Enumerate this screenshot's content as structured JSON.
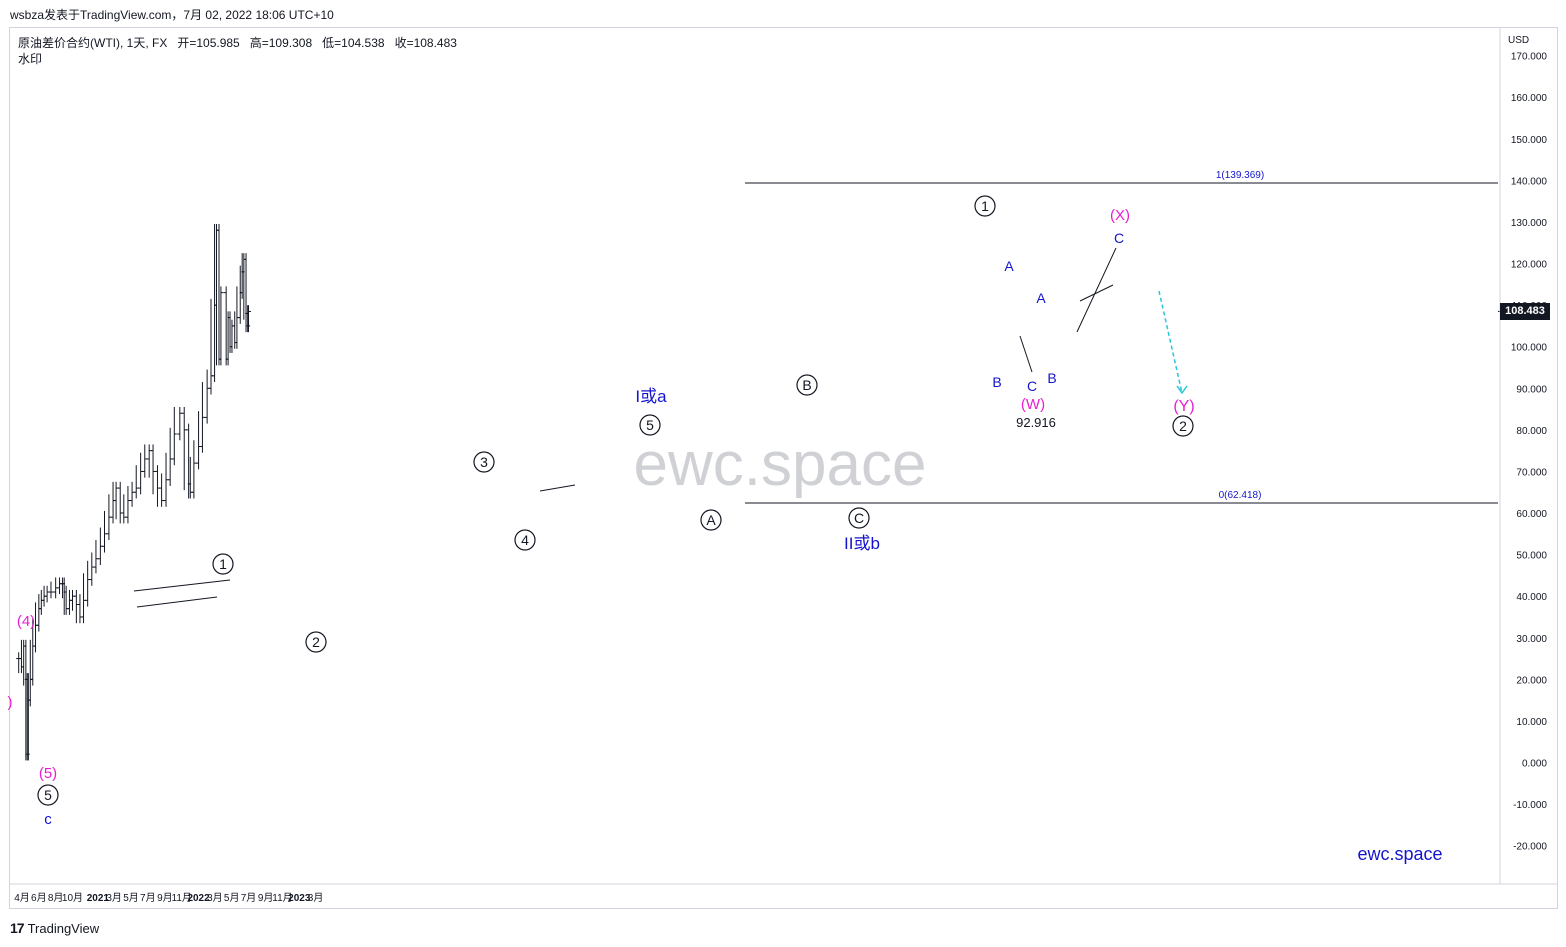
{
  "header": {
    "publish_line": "wsbza发表于TradingView.com，7月 02, 2022 18:06 UTC+10"
  },
  "legend": {
    "symbol": "原油差价合约(WTI), 1天, FX",
    "open": "开=105.985",
    "high": "高=109.308",
    "low": "低=104.538",
    "close": "收=108.483",
    "watermark_label": "水印"
  },
  "watermark": "ewc.space",
  "brand_label": "ewc.space",
  "last_price": "108.483",
  "footer": {
    "logo": "17",
    "text": "TradingView"
  },
  "colors": {
    "candles": "#131722",
    "blue_labels": "#1414cc",
    "magenta_labels": "#e91ed1",
    "projection_arrow": "#26c6da",
    "fib_line": "#131722",
    "fib_text": "#1414cc"
  },
  "chart_data": {
    "type": "line",
    "title": "原油差价合约(WTI), 1天, FX",
    "currency_label": "USD",
    "y_ticks": [
      "170.000",
      "160.000",
      "150.000",
      "140.000",
      "130.000",
      "120.000",
      "110.000",
      "100.000",
      "90.000",
      "80.000",
      "70.000",
      "60.000",
      "50.000",
      "40.000",
      "30.000",
      "20.000",
      "10.000",
      "0.000",
      "-10.000",
      "-20.000"
    ],
    "ylim": [
      -26,
      177
    ],
    "x_ticks": [
      "4月",
      "6月",
      "8月",
      "10月",
      "2021",
      "3月",
      "5月",
      "7月",
      "9月",
      "11月",
      "2022",
      "3月",
      "5月",
      "7月",
      "9月",
      "11月",
      "2023",
      "3月"
    ],
    "x_tick_dates": [
      "2020-04-01",
      "2020-06-01",
      "2020-08-01",
      "2020-10-01",
      "2021-01-01",
      "2021-03-01",
      "2021-05-01",
      "2021-07-01",
      "2021-09-01",
      "2021-11-01",
      "2022-01-01",
      "2022-03-01",
      "2022-05-01",
      "2022-07-01",
      "2022-09-01",
      "2022-11-01",
      "2023-01-01",
      "2023-03-01"
    ],
    "series": [
      {
        "name": "",
        "x": [
          "2020-03-20",
          "2020-03-30",
          "2020-04-07",
          "2020-04-15",
          "2020-04-20",
          "2020-04-24",
          "2020-05-01",
          "2020-05-10",
          "2020-05-20",
          "2020-06-01",
          "2020-06-10",
          "2020-06-20",
          "2020-07-01",
          "2020-07-15",
          "2020-08-01",
          "2020-08-15",
          "2020-08-26",
          "2020-09-01",
          "2020-09-08",
          "2020-09-20",
          "2020-10-01",
          "2020-10-15",
          "2020-10-28",
          "2020-11-10",
          "2020-11-25",
          "2020-12-10",
          "2020-12-25",
          "2021-01-10",
          "2021-01-25",
          "2021-02-10",
          "2021-02-25",
          "2021-03-08",
          "2021-03-23",
          "2021-04-05",
          "2021-04-20",
          "2021-05-05",
          "2021-05-20",
          "2021-06-05",
          "2021-06-20",
          "2021-07-06",
          "2021-07-20",
          "2021-08-05",
          "2021-08-20",
          "2021-09-05",
          "2021-09-20",
          "2021-10-05",
          "2021-10-25",
          "2021-11-10",
          "2021-11-26",
          "2021-12-02",
          "2021-12-15",
          "2022-01-01",
          "2022-01-15",
          "2022-02-01",
          "2022-02-15",
          "2022-02-28",
          "2022-03-07",
          "2022-03-16",
          "2022-03-23",
          "2022-04-11",
          "2022-04-18",
          "2022-04-25",
          "2022-05-02",
          "2022-05-12",
          "2022-05-20",
          "2022-06-01",
          "2022-06-08",
          "2022-06-14",
          "2022-06-22",
          "2022-06-28",
          "2022-07-01"
        ],
        "values": [
          25,
          23,
          28,
          20,
          2,
          15,
          20,
          28,
          33,
          37,
          39,
          40,
          41,
          41,
          42,
          43,
          43,
          41,
          37,
          39,
          40,
          38,
          35,
          39,
          44,
          47,
          49,
          52,
          55,
          59,
          63,
          66,
          60,
          59,
          63,
          65,
          66,
          70,
          73,
          75,
          70,
          66,
          63,
          68,
          73,
          79,
          84,
          80,
          67,
          65,
          72,
          76,
          83,
          90,
          93,
          110,
          128,
          97,
          113,
          97,
          107,
          100,
          105,
          101,
          107,
          113,
          118,
          121,
          108,
          105,
          108.483
        ],
        "ohlc_last": {
          "open": 105.985,
          "high": 109.308,
          "low": 104.538,
          "close": 108.483
        }
      }
    ],
    "fibonacci": [
      {
        "label": "1(139.369)",
        "level": 139.369
      },
      {
        "label": "0(62.418)",
        "level": 62.418
      }
    ],
    "annotations": [
      {
        "text": "(4)",
        "color": "magenta"
      },
      {
        "text": "(5)",
        "color": "magenta"
      },
      {
        "text": "5",
        "style": "circled"
      },
      {
        "text": "c",
        "color": "blue"
      },
      {
        "text": ")",
        "color": "magenta"
      },
      {
        "text": "1",
        "style": "circled"
      },
      {
        "text": "2",
        "style": "circled"
      },
      {
        "text": "3",
        "style": "circled"
      },
      {
        "text": "4",
        "style": "circled"
      },
      {
        "text": "5",
        "style": "circled"
      },
      {
        "text": "I或a",
        "color": "blue"
      },
      {
        "text": "A",
        "style": "circled"
      },
      {
        "text": "B",
        "style": "circled"
      },
      {
        "text": "C",
        "style": "circled"
      },
      {
        "text": "II或b",
        "color": "blue"
      },
      {
        "text": "1",
        "style": "circled"
      },
      {
        "text": "A",
        "color": "blue"
      },
      {
        "text": "B",
        "color": "blue"
      },
      {
        "text": "C",
        "color": "blue"
      },
      {
        "text": "(W)",
        "color": "magenta"
      },
      {
        "text": "92.916"
      },
      {
        "text": "A",
        "color": "blue"
      },
      {
        "text": "B",
        "color": "blue"
      },
      {
        "text": "C",
        "color": "blue"
      },
      {
        "text": "(X)",
        "color": "magenta"
      },
      {
        "text": "(Y)",
        "color": "magenta"
      },
      {
        "text": "2",
        "style": "circled"
      }
    ],
    "grid": false,
    "axis_position": "right"
  }
}
